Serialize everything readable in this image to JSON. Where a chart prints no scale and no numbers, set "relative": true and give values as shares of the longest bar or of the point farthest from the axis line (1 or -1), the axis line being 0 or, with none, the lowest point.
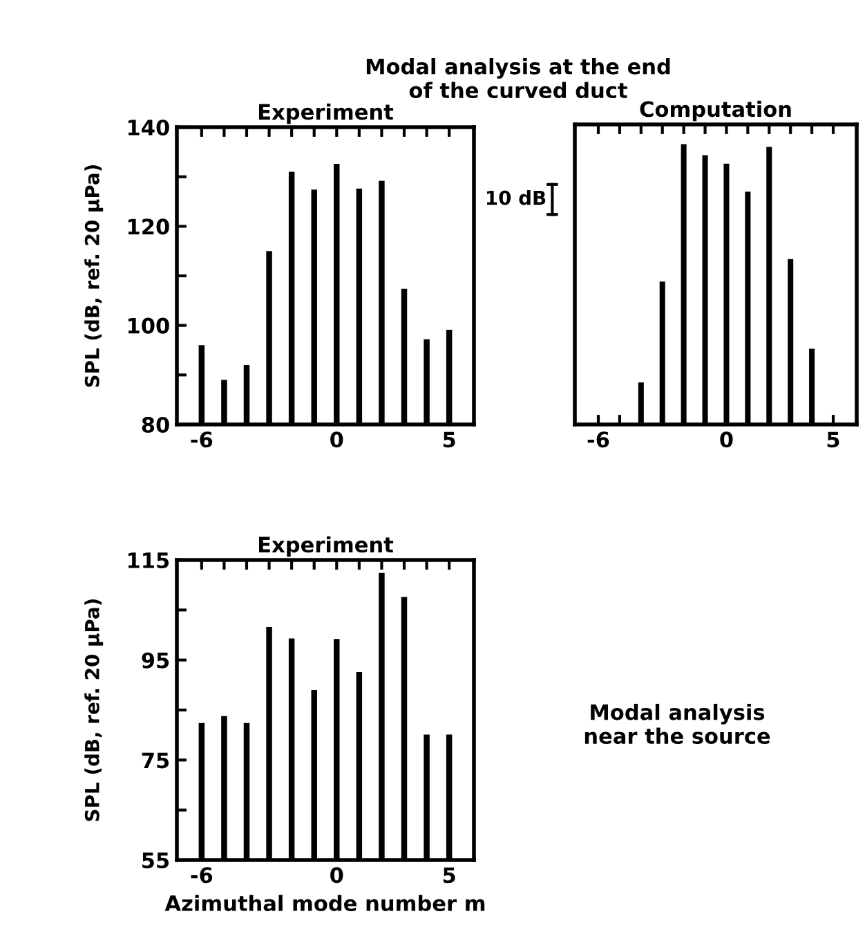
{
  "chart_data": [
    {
      "type": "bar",
      "title": "Experiment",
      "ylabel": "SPL (dB, ref. 20 μPa)",
      "annotations": [
        "Modal analysis at the end\nof the curved duct"
      ],
      "x": [
        -6,
        -5,
        -4,
        -3,
        -2,
        -1,
        0,
        1,
        2,
        3,
        4,
        5
      ],
      "values": [
        96,
        89,
        92,
        115,
        131,
        127.4,
        132.6,
        127.6,
        129.2,
        107.4,
        97.2,
        99.1
      ],
      "color": "#000000",
      "xlim": [
        -7.1,
        6.1
      ],
      "xticks": [
        -6,
        {
          "value": -5,
          "label": null
        },
        {
          "value": -4,
          "label": null
        },
        {
          "value": -3,
          "label": null
        },
        {
          "value": -2,
          "label": null
        },
        {
          "value": -1,
          "label": null
        },
        0,
        {
          "value": 1,
          "label": null
        },
        {
          "value": 2,
          "label": null
        },
        {
          "value": 3,
          "label": null
        },
        {
          "value": 4,
          "label": null
        },
        5
      ],
      "ylim": [
        80,
        140
      ],
      "yticks": [
        80,
        {
          "value": 90,
          "label": null
        },
        100,
        {
          "value": 110,
          "label": null
        },
        120,
        {
          "value": 130,
          "label": null
        },
        140
      ],
      "grid": false
    },
    {
      "type": "bar",
      "title": "Computation",
      "relative": true,
      "annotations": [
        "10 dB"
      ],
      "x": [
        -4,
        -3,
        -2,
        -1,
        0,
        1,
        2,
        3,
        4
      ],
      "values": [
        0.15,
        0.51,
        1,
        0.96,
        0.93,
        0.83,
        0.99,
        0.59,
        0.27
      ],
      "color": "#000000",
      "xlim": [
        -7.1,
        6.1
      ],
      "xticks": [
        -6,
        {
          "value": -5,
          "label": null
        },
        {
          "value": -4,
          "label": null
        },
        {
          "value": -3,
          "label": null
        },
        {
          "value": -2,
          "label": null
        },
        {
          "value": -1,
          "label": null
        },
        0,
        {
          "value": 1,
          "label": null
        },
        {
          "value": 2,
          "label": null
        },
        {
          "value": 3,
          "label": null
        },
        {
          "value": 4,
          "label": null
        },
        5
      ],
      "grid": false
    },
    {
      "type": "bar",
      "title": "Experiment",
      "ylabel": "SPL (dB, ref. 20 μPa)",
      "xlabel": "Azimuthal mode number m",
      "annotations": [
        "Modal analysis\nnear the source"
      ],
      "x": [
        -6,
        -5,
        -4,
        -3,
        -2,
        -1,
        0,
        1,
        2,
        3,
        4,
        5
      ],
      "values": [
        82.4,
        83.8,
        82.4,
        101.6,
        99.3,
        89,
        99.2,
        92.6,
        112.4,
        107.6,
        80.1,
        80.1
      ],
      "color": "#000000",
      "xlim": [
        -7.1,
        6.1
      ],
      "xticks": [
        -6,
        {
          "value": -5,
          "label": null
        },
        {
          "value": -4,
          "label": null
        },
        {
          "value": -3,
          "label": null
        },
        {
          "value": -2,
          "label": null
        },
        {
          "value": -1,
          "label": null
        },
        0,
        {
          "value": 1,
          "label": null
        },
        {
          "value": 2,
          "label": null
        },
        {
          "value": 3,
          "label": null
        },
        {
          "value": 4,
          "label": null
        },
        5
      ],
      "ylim": [
        55,
        115
      ],
      "yticks": [
        55,
        {
          "value": 65,
          "label": null
        },
        75,
        {
          "value": 85,
          "label": null
        },
        95,
        {
          "value": 105,
          "label": null
        },
        115
      ],
      "grid": false
    }
  ]
}
